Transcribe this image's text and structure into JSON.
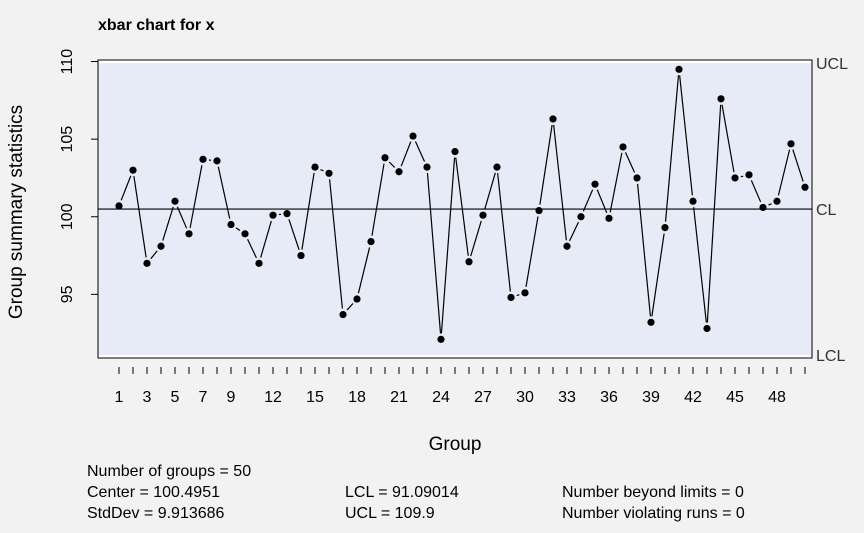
{
  "chart_data": {
    "type": "line",
    "title": "xbar chart for x",
    "xlabel": "Group",
    "ylabel": "Group summary statistics",
    "x": [
      1,
      2,
      3,
      4,
      5,
      6,
      7,
      8,
      9,
      10,
      11,
      12,
      13,
      14,
      15,
      16,
      17,
      18,
      19,
      20,
      21,
      22,
      23,
      24,
      25,
      26,
      27,
      28,
      29,
      30,
      31,
      32,
      33,
      34,
      35,
      36,
      37,
      38,
      39,
      40,
      41,
      42,
      43,
      44,
      45,
      46,
      47,
      48,
      49,
      50
    ],
    "values": [
      100.7,
      103.0,
      97.0,
      98.1,
      101.0,
      98.9,
      103.7,
      103.6,
      99.5,
      98.9,
      97.0,
      100.1,
      100.2,
      97.5,
      103.2,
      102.8,
      93.7,
      94.7,
      98.4,
      103.8,
      102.9,
      105.2,
      103.2,
      92.1,
      104.2,
      97.1,
      100.1,
      103.2,
      94.8,
      95.1,
      100.4,
      106.3,
      98.1,
      100.0,
      102.1,
      99.9,
      104.5,
      102.5,
      93.2,
      99.3,
      109.5,
      101.0,
      92.8,
      107.6,
      102.5,
      102.7,
      100.6,
      101.0,
      104.7,
      101.9
    ],
    "xticks": [
      "1",
      "3",
      "5",
      "7",
      "9",
      "12",
      "15",
      "18",
      "21",
      "24",
      "27",
      "30",
      "33",
      "36",
      "39",
      "42",
      "45",
      "48"
    ],
    "xtick_positions": [
      1,
      3,
      5,
      7,
      9,
      12,
      15,
      18,
      21,
      24,
      27,
      30,
      33,
      36,
      39,
      42,
      45,
      48
    ],
    "yticks": [
      "95",
      "100",
      "105",
      "110"
    ],
    "ytick_values": [
      95,
      100,
      105,
      110
    ],
    "ylim": [
      90.9,
      110.1
    ],
    "xlim": [
      -0.5,
      50.5
    ],
    "limits": {
      "UCL": 109.9,
      "CL": 100.4951,
      "LCL": 91.09014
    },
    "limit_labels": [
      "UCL",
      "CL",
      "LCL"
    ],
    "colors": {
      "band": "#e6ebf7",
      "line": "#000000",
      "background": "#f2f2f2"
    }
  },
  "stats": {
    "groups": "Number of groups = 50",
    "center": "Center = 100.4951",
    "stddev": "StdDev = 9.913686",
    "lcl": "LCL = 91.09014",
    "ucl": "UCL = 109.9",
    "beyond": "Number beyond limits = 0",
    "violating": "Number violating runs = 0"
  }
}
